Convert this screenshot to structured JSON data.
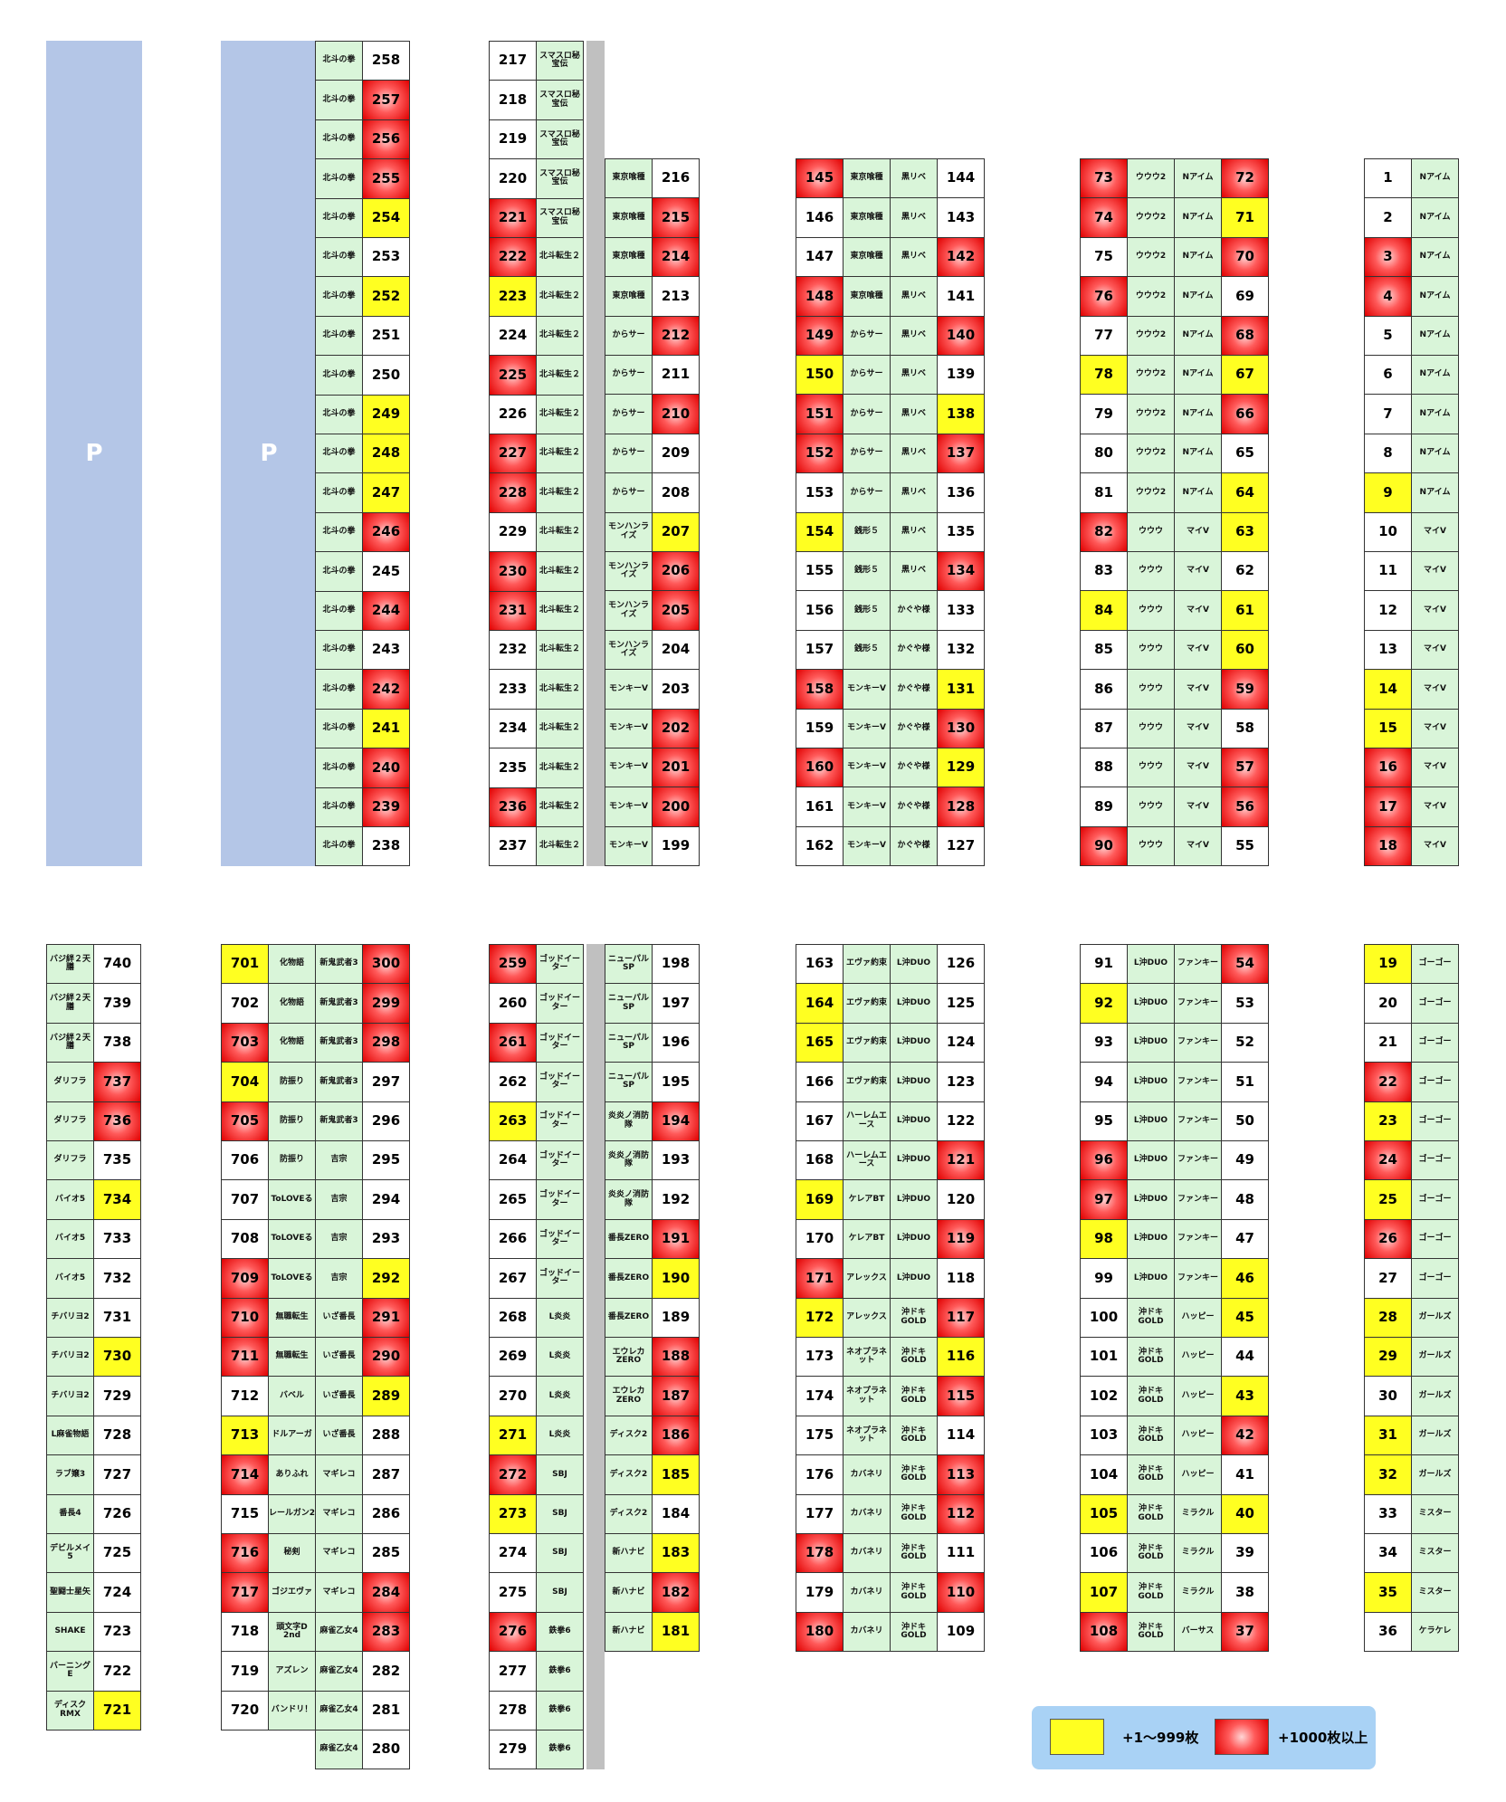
{
  "parking": {
    "label": "P"
  },
  "legend": {
    "small_label": "+1〜999枚",
    "big_label": "+1000枚以上",
    "small_color": "#ffff21",
    "big_color": "#e00000"
  },
  "bottom_left": [
    [
      "バジ絆２天膳",
      "740",
      ""
    ],
    [
      "バジ絆２天膳",
      "739",
      ""
    ],
    [
      "バジ絆２天膳",
      "738",
      ""
    ],
    [
      "ダリフラ",
      "737",
      "r"
    ],
    [
      "ダリフラ",
      "736",
      "r"
    ],
    [
      "ダリフラ",
      "735",
      ""
    ],
    [
      "バイオ5",
      "734",
      "y"
    ],
    [
      "バイオ5",
      "733",
      ""
    ],
    [
      "バイオ5",
      "732",
      ""
    ],
    [
      "チバリヨ2",
      "731",
      ""
    ],
    [
      "チバリヨ2",
      "730",
      "y"
    ],
    [
      "チバリヨ2",
      "729",
      ""
    ],
    [
      "L麻雀物語",
      "728",
      ""
    ],
    [
      "ラブ嬢3",
      "727",
      ""
    ],
    [
      "番長4",
      "726",
      ""
    ],
    [
      "デビルメイ5",
      "725",
      ""
    ],
    [
      "聖闘士星矢",
      "724",
      ""
    ],
    [
      "SHAKE",
      "723",
      ""
    ],
    [
      "バーニングE",
      "722",
      ""
    ],
    [
      "ディスクRMX",
      "721",
      "y"
    ]
  ],
  "bl2": [
    [
      "701",
      "y",
      "化物語",
      "新鬼武者3",
      "300",
      "r"
    ],
    [
      "702",
      "",
      "化物語",
      "新鬼武者3",
      "299",
      "r"
    ],
    [
      "703",
      "r",
      "化物語",
      "新鬼武者3",
      "298",
      "r"
    ],
    [
      "704",
      "y",
      "防振り",
      "新鬼武者3",
      "297",
      ""
    ],
    [
      "705",
      "r",
      "防振り",
      "新鬼武者3",
      "296",
      ""
    ],
    [
      "706",
      "",
      "防振り",
      "吉宗",
      "295",
      ""
    ],
    [
      "707",
      "",
      "ToLOVEる",
      "吉宗",
      "294",
      ""
    ],
    [
      "708",
      "",
      "ToLOVEる",
      "吉宗",
      "293",
      ""
    ],
    [
      "709",
      "r",
      "ToLOVEる",
      "吉宗",
      "292",
      "y"
    ],
    [
      "710",
      "r",
      "無職転生",
      "いざ番長",
      "291",
      "r"
    ],
    [
      "711",
      "r",
      "無職転生",
      "いざ番長",
      "290",
      "r"
    ],
    [
      "712",
      "",
      "バベル",
      "いざ番長",
      "289",
      "y"
    ],
    [
      "713",
      "y",
      "ドルアーガ",
      "いざ番長",
      "288",
      ""
    ],
    [
      "714",
      "r",
      "ありふれ",
      "マギレコ",
      "287",
      ""
    ],
    [
      "715",
      "",
      "レールガン2",
      "マギレコ",
      "286",
      ""
    ],
    [
      "716",
      "r",
      "秘剣",
      "マギレコ",
      "285",
      ""
    ],
    [
      "717",
      "r",
      "ゴジエヴァ",
      "マギレコ",
      "284",
      "r"
    ],
    [
      "718",
      "",
      "頭文字D 2nd",
      "麻雀乙女4",
      "283",
      "r"
    ],
    [
      "719",
      "",
      "アズレン",
      "麻雀乙女4",
      "282",
      ""
    ],
    [
      "720",
      "",
      "バンドリ！",
      "麻雀乙女4",
      "281",
      ""
    ],
    [
      "",
      "",
      "",
      "麻雀乙女4",
      "280",
      ""
    ]
  ],
  "bl3": [
    [
      "259",
      "r",
      "ゴッドイーター"
    ],
    [
      "260",
      "",
      "ゴッドイーター"
    ],
    [
      "261",
      "r",
      "ゴッドイーター"
    ],
    [
      "262",
      "",
      "ゴッドイーター"
    ],
    [
      "263",
      "y",
      "ゴッドイーター"
    ],
    [
      "264",
      "",
      "ゴッドイーター"
    ],
    [
      "265",
      "",
      "ゴッドイーター"
    ],
    [
      "266",
      "",
      "ゴッドイーター"
    ],
    [
      "267",
      "",
      "ゴッドイーター"
    ],
    [
      "268",
      "",
      "L炎炎"
    ],
    [
      "269",
      "",
      "L炎炎"
    ],
    [
      "270",
      "",
      "L炎炎"
    ],
    [
      "271",
      "y",
      "L炎炎"
    ],
    [
      "272",
      "r",
      "SBJ"
    ],
    [
      "273",
      "y",
      "SBJ"
    ],
    [
      "274",
      "",
      "SBJ"
    ],
    [
      "275",
      "",
      "SBJ"
    ],
    [
      "276",
      "r",
      "鉄拳6"
    ],
    [
      "277",
      "",
      "鉄拳6"
    ],
    [
      "278",
      "",
      "鉄拳6"
    ],
    [
      "279",
      "",
      "鉄拳6"
    ]
  ],
  "bl4": [
    [
      "ニューパルSP",
      "198",
      ""
    ],
    [
      "ニューパルSP",
      "197",
      ""
    ],
    [
      "ニューパルSP",
      "196",
      ""
    ],
    [
      "ニューパルSP",
      "195",
      ""
    ],
    [
      "炎炎ノ消防隊",
      "194",
      "r"
    ],
    [
      "炎炎ノ消防隊",
      "193",
      ""
    ],
    [
      "炎炎ノ消防隊",
      "192",
      ""
    ],
    [
      "番長ZERO",
      "191",
      "r"
    ],
    [
      "番長ZERO",
      "190",
      "y"
    ],
    [
      "番長ZERO",
      "189",
      ""
    ],
    [
      "エウレカZERO",
      "188",
      "r"
    ],
    [
      "エウレカZERO",
      "187",
      "r"
    ],
    [
      "ディスク2",
      "186",
      "r"
    ],
    [
      "ディスク2",
      "185",
      "y"
    ],
    [
      "ディスク2",
      "184",
      ""
    ],
    [
      "新ハナビ",
      "183",
      "y"
    ],
    [
      "新ハナビ",
      "182",
      "r"
    ],
    [
      "新ハナビ",
      "181",
      "y"
    ]
  ],
  "bl5": [
    [
      "163",
      "",
      "エヴァ約束",
      "L沖DUO",
      "126",
      ""
    ],
    [
      "164",
      "y",
      "エヴァ約束",
      "L沖DUO",
      "125",
      ""
    ],
    [
      "165",
      "y",
      "エヴァ約束",
      "L沖DUO",
      "124",
      ""
    ],
    [
      "166",
      "",
      "エヴァ約束",
      "L沖DUO",
      "123",
      ""
    ],
    [
      "167",
      "",
      "ハーレムエース",
      "L沖DUO",
      "122",
      ""
    ],
    [
      "168",
      "",
      "ハーレムエース",
      "L沖DUO",
      "121",
      "r"
    ],
    [
      "169",
      "y",
      "ケレアBT",
      "L沖DUO",
      "120",
      ""
    ],
    [
      "170",
      "",
      "ケレアBT",
      "L沖DUO",
      "119",
      "r"
    ],
    [
      "171",
      "r",
      "アレックス",
      "L沖DUO",
      "118",
      ""
    ],
    [
      "172",
      "y",
      "アレックス",
      "沖ドキGOLD",
      "117",
      "r"
    ],
    [
      "173",
      "",
      "ネオプラネット",
      "沖ドキGOLD",
      "116",
      "y"
    ],
    [
      "174",
      "",
      "ネオプラネット",
      "沖ドキGOLD",
      "115",
      "r"
    ],
    [
      "175",
      "",
      "ネオプラネット",
      "沖ドキGOLD",
      "114",
      ""
    ],
    [
      "176",
      "",
      "カバネリ",
      "沖ドキGOLD",
      "113",
      "r"
    ],
    [
      "177",
      "",
      "カバネリ",
      "沖ドキGOLD",
      "112",
      "r"
    ],
    [
      "178",
      "r",
      "カバネリ",
      "沖ドキGOLD",
      "111",
      ""
    ],
    [
      "179",
      "",
      "カバネリ",
      "沖ドキGOLD",
      "110",
      "r"
    ],
    [
      "180",
      "r",
      "カバネリ",
      "沖ドキGOLD",
      "109",
      ""
    ]
  ],
  "bl6": [
    [
      "91",
      "",
      "L沖DUO",
      "ファンキー",
      "54",
      "r"
    ],
    [
      "92",
      "y",
      "L沖DUO",
      "ファンキー",
      "53",
      ""
    ],
    [
      "93",
      "",
      "L沖DUO",
      "ファンキー",
      "52",
      ""
    ],
    [
      "94",
      "",
      "L沖DUO",
      "ファンキー",
      "51",
      ""
    ],
    [
      "95",
      "",
      "L沖DUO",
      "ファンキー",
      "50",
      ""
    ],
    [
      "96",
      "r",
      "L沖DUO",
      "ファンキー",
      "49",
      ""
    ],
    [
      "97",
      "r",
      "L沖DUO",
      "ファンキー",
      "48",
      ""
    ],
    [
      "98",
      "y",
      "L沖DUO",
      "ファンキー",
      "47",
      ""
    ],
    [
      "99",
      "",
      "L沖DUO",
      "ファンキー",
      "46",
      "y"
    ],
    [
      "100",
      "",
      "沖ドキGOLD",
      "ハッピー",
      "45",
      "y"
    ],
    [
      "101",
      "",
      "沖ドキGOLD",
      "ハッピー",
      "44",
      ""
    ],
    [
      "102",
      "",
      "沖ドキGOLD",
      "ハッピー",
      "43",
      "y"
    ],
    [
      "103",
      "",
      "沖ドキGOLD",
      "ハッピー",
      "42",
      "r"
    ],
    [
      "104",
      "",
      "沖ドキGOLD",
      "ハッピー",
      "41",
      ""
    ],
    [
      "105",
      "y",
      "沖ドキGOLD",
      "ミラクル",
      "40",
      "y"
    ],
    [
      "106",
      "",
      "沖ドキGOLD",
      "ミラクル",
      "39",
      ""
    ],
    [
      "107",
      "y",
      "沖ドキGOLD",
      "ミラクル",
      "38",
      ""
    ],
    [
      "108",
      "r",
      "沖ドキGOLD",
      "バーサス",
      "37",
      "r"
    ]
  ],
  "bl7": [
    [
      "19",
      "y",
      "ゴーゴー"
    ],
    [
      "20",
      "",
      "ゴーゴー"
    ],
    [
      "21",
      "",
      "ゴーゴー"
    ],
    [
      "22",
      "r",
      "ゴーゴー"
    ],
    [
      "23",
      "y",
      "ゴーゴー"
    ],
    [
      "24",
      "r",
      "ゴーゴー"
    ],
    [
      "25",
      "y",
      "ゴーゴー"
    ],
    [
      "26",
      "r",
      "ゴーゴー"
    ],
    [
      "27",
      "",
      "ゴーゴー"
    ],
    [
      "28",
      "y",
      "ガールズ"
    ],
    [
      "29",
      "y",
      "ガールズ"
    ],
    [
      "30",
      "",
      "ガールズ"
    ],
    [
      "31",
      "y",
      "ガールズ"
    ],
    [
      "32",
      "y",
      "ガールズ"
    ],
    [
      "33",
      "",
      "ミスター"
    ],
    [
      "34",
      "",
      "ミスター"
    ],
    [
      "35",
      "y",
      "ミスター"
    ],
    [
      "36",
      "",
      "ケラケレ"
    ]
  ],
  "t2": [
    [
      "北斗の拳",
      "258",
      ""
    ],
    [
      "北斗の拳",
      "257",
      "r"
    ],
    [
      "北斗の拳",
      "256",
      "r"
    ],
    [
      "北斗の拳",
      "255",
      "r"
    ],
    [
      "北斗の拳",
      "254",
      "y"
    ],
    [
      "北斗の拳",
      "253",
      ""
    ],
    [
      "北斗の拳",
      "252",
      "y"
    ],
    [
      "北斗の拳",
      "251",
      ""
    ],
    [
      "北斗の拳",
      "250",
      ""
    ],
    [
      "北斗の拳",
      "249",
      "y"
    ],
    [
      "北斗の拳",
      "248",
      "y"
    ],
    [
      "北斗の拳",
      "247",
      "y"
    ],
    [
      "北斗の拳",
      "246",
      "r"
    ],
    [
      "北斗の拳",
      "245",
      ""
    ],
    [
      "北斗の拳",
      "244",
      "r"
    ],
    [
      "北斗の拳",
      "243",
      ""
    ],
    [
      "北斗の拳",
      "242",
      "r"
    ],
    [
      "北斗の拳",
      "241",
      "y"
    ],
    [
      "北斗の拳",
      "240",
      "r"
    ],
    [
      "北斗の拳",
      "239",
      "r"
    ],
    [
      "北斗の拳",
      "238",
      ""
    ]
  ],
  "t3": [
    [
      "217",
      "",
      "スマスロ秘宝伝"
    ],
    [
      "218",
      "",
      "スマスロ秘宝伝"
    ],
    [
      "219",
      "",
      "スマスロ秘宝伝"
    ],
    [
      "220",
      "",
      "スマスロ秘宝伝"
    ],
    [
      "221",
      "r",
      "スマスロ秘宝伝"
    ],
    [
      "222",
      "r",
      "北斗転生２"
    ],
    [
      "223",
      "y",
      "北斗転生２"
    ],
    [
      "224",
      "",
      "北斗転生２"
    ],
    [
      "225",
      "r",
      "北斗転生２"
    ],
    [
      "226",
      "",
      "北斗転生２"
    ],
    [
      "227",
      "r",
      "北斗転生２"
    ],
    [
      "228",
      "r",
      "北斗転生２"
    ],
    [
      "229",
      "",
      "北斗転生２"
    ],
    [
      "230",
      "r",
      "北斗転生２"
    ],
    [
      "231",
      "r",
      "北斗転生２"
    ],
    [
      "232",
      "",
      "北斗転生２"
    ],
    [
      "233",
      "",
      "北斗転生２"
    ],
    [
      "234",
      "",
      "北斗転生２"
    ],
    [
      "235",
      "",
      "北斗転生２"
    ],
    [
      "236",
      "r",
      "北斗転生２"
    ],
    [
      "237",
      "",
      "北斗転生２"
    ]
  ],
  "t4": [
    [
      "東京喰種",
      "216",
      ""
    ],
    [
      "東京喰種",
      "215",
      "r"
    ],
    [
      "東京喰種",
      "214",
      "r"
    ],
    [
      "東京喰種",
      "213",
      ""
    ],
    [
      "からサー",
      "212",
      "r"
    ],
    [
      "からサー",
      "211",
      ""
    ],
    [
      "からサー",
      "210",
      "r"
    ],
    [
      "からサー",
      "209",
      ""
    ],
    [
      "からサー",
      "208",
      ""
    ],
    [
      "モンハンライズ",
      "207",
      "y"
    ],
    [
      "モンハンライズ",
      "206",
      "r"
    ],
    [
      "モンハンライズ",
      "205",
      "r"
    ],
    [
      "モンハンライズ",
      "204",
      ""
    ],
    [
      "モンキーV",
      "203",
      ""
    ],
    [
      "モンキーV",
      "202",
      "r"
    ],
    [
      "モンキーV",
      "201",
      "r"
    ],
    [
      "モンキーV",
      "200",
      "r"
    ],
    [
      "モンキーV",
      "199",
      ""
    ]
  ],
  "t5": [
    [
      "145",
      "r",
      "東京喰種",
      "黒リベ",
      "144",
      ""
    ],
    [
      "146",
      "",
      "東京喰種",
      "黒リベ",
      "143",
      ""
    ],
    [
      "147",
      "",
      "東京喰種",
      "黒リベ",
      "142",
      "r"
    ],
    [
      "148",
      "r",
      "東京喰種",
      "黒リベ",
      "141",
      ""
    ],
    [
      "149",
      "r",
      "からサー",
      "黒リベ",
      "140",
      "r"
    ],
    [
      "150",
      "y",
      "からサー",
      "黒リベ",
      "139",
      ""
    ],
    [
      "151",
      "r",
      "からサー",
      "黒リベ",
      "138",
      "y"
    ],
    [
      "152",
      "r",
      "からサー",
      "黒リベ",
      "137",
      "r"
    ],
    [
      "153",
      "",
      "からサー",
      "黒リベ",
      "136",
      ""
    ],
    [
      "154",
      "y",
      "銭形５",
      "黒リベ",
      "135",
      ""
    ],
    [
      "155",
      "",
      "銭形５",
      "黒リベ",
      "134",
      "r"
    ],
    [
      "156",
      "",
      "銭形５",
      "かぐや様",
      "133",
      ""
    ],
    [
      "157",
      "",
      "銭形５",
      "かぐや様",
      "132",
      ""
    ],
    [
      "158",
      "r",
      "モンキーV",
      "かぐや様",
      "131",
      "y"
    ],
    [
      "159",
      "",
      "モンキーV",
      "かぐや様",
      "130",
      "r"
    ],
    [
      "160",
      "r",
      "モンキーV",
      "かぐや様",
      "129",
      "y"
    ],
    [
      "161",
      "",
      "モンキーV",
      "かぐや様",
      "128",
      "r"
    ],
    [
      "162",
      "",
      "モンキーV",
      "かぐや様",
      "127",
      ""
    ]
  ],
  "t6": [
    [
      "73",
      "r",
      "ウウウ2",
      "Nアイム",
      "72",
      "r"
    ],
    [
      "74",
      "r",
      "ウウウ2",
      "Nアイム",
      "71",
      "y"
    ],
    [
      "75",
      "",
      "ウウウ2",
      "Nアイム",
      "70",
      "r"
    ],
    [
      "76",
      "r",
      "ウウウ2",
      "Nアイム",
      "69",
      ""
    ],
    [
      "77",
      "",
      "ウウウ2",
      "Nアイム",
      "68",
      "r"
    ],
    [
      "78",
      "y",
      "ウウウ2",
      "Nアイム",
      "67",
      "y"
    ],
    [
      "79",
      "",
      "ウウウ2",
      "Nアイム",
      "66",
      "r"
    ],
    [
      "80",
      "",
      "ウウウ2",
      "Nアイム",
      "65",
      ""
    ],
    [
      "81",
      "",
      "ウウウ2",
      "Nアイム",
      "64",
      "y"
    ],
    [
      "82",
      "r",
      "ウウウ",
      "マイV",
      "63",
      "y"
    ],
    [
      "83",
      "",
      "ウウウ",
      "マイV",
      "62",
      ""
    ],
    [
      "84",
      "y",
      "ウウウ",
      "マイV",
      "61",
      "y"
    ],
    [
      "85",
      "",
      "ウウウ",
      "マイV",
      "60",
      "y"
    ],
    [
      "86",
      "",
      "ウウウ",
      "マイV",
      "59",
      "r"
    ],
    [
      "87",
      "",
      "ウウウ",
      "マイV",
      "58",
      ""
    ],
    [
      "88",
      "",
      "ウウウ",
      "マイV",
      "57",
      "r"
    ],
    [
      "89",
      "",
      "ウウウ",
      "マイV",
      "56",
      "r"
    ],
    [
      "90",
      "r",
      "ウウウ",
      "マイV",
      "55",
      ""
    ]
  ],
  "t7": [
    [
      "1",
      "",
      "Nアイム"
    ],
    [
      "2",
      "",
      "Nアイム"
    ],
    [
      "3",
      "r",
      "Nアイム"
    ],
    [
      "4",
      "r",
      "Nアイム"
    ],
    [
      "5",
      "",
      "Nアイム"
    ],
    [
      "6",
      "",
      "Nアイム"
    ],
    [
      "7",
      "",
      "Nアイム"
    ],
    [
      "8",
      "",
      "Nアイム"
    ],
    [
      "9",
      "y",
      "Nアイム"
    ],
    [
      "10",
      "",
      "マイV"
    ],
    [
      "11",
      "",
      "マイV"
    ],
    [
      "12",
      "",
      "マイV"
    ],
    [
      "13",
      "",
      "マイV"
    ],
    [
      "14",
      "y",
      "マイV"
    ],
    [
      "15",
      "y",
      "マイV"
    ],
    [
      "16",
      "r",
      "マイV"
    ],
    [
      "17",
      "r",
      "マイV"
    ],
    [
      "18",
      "r",
      "マイV"
    ]
  ]
}
